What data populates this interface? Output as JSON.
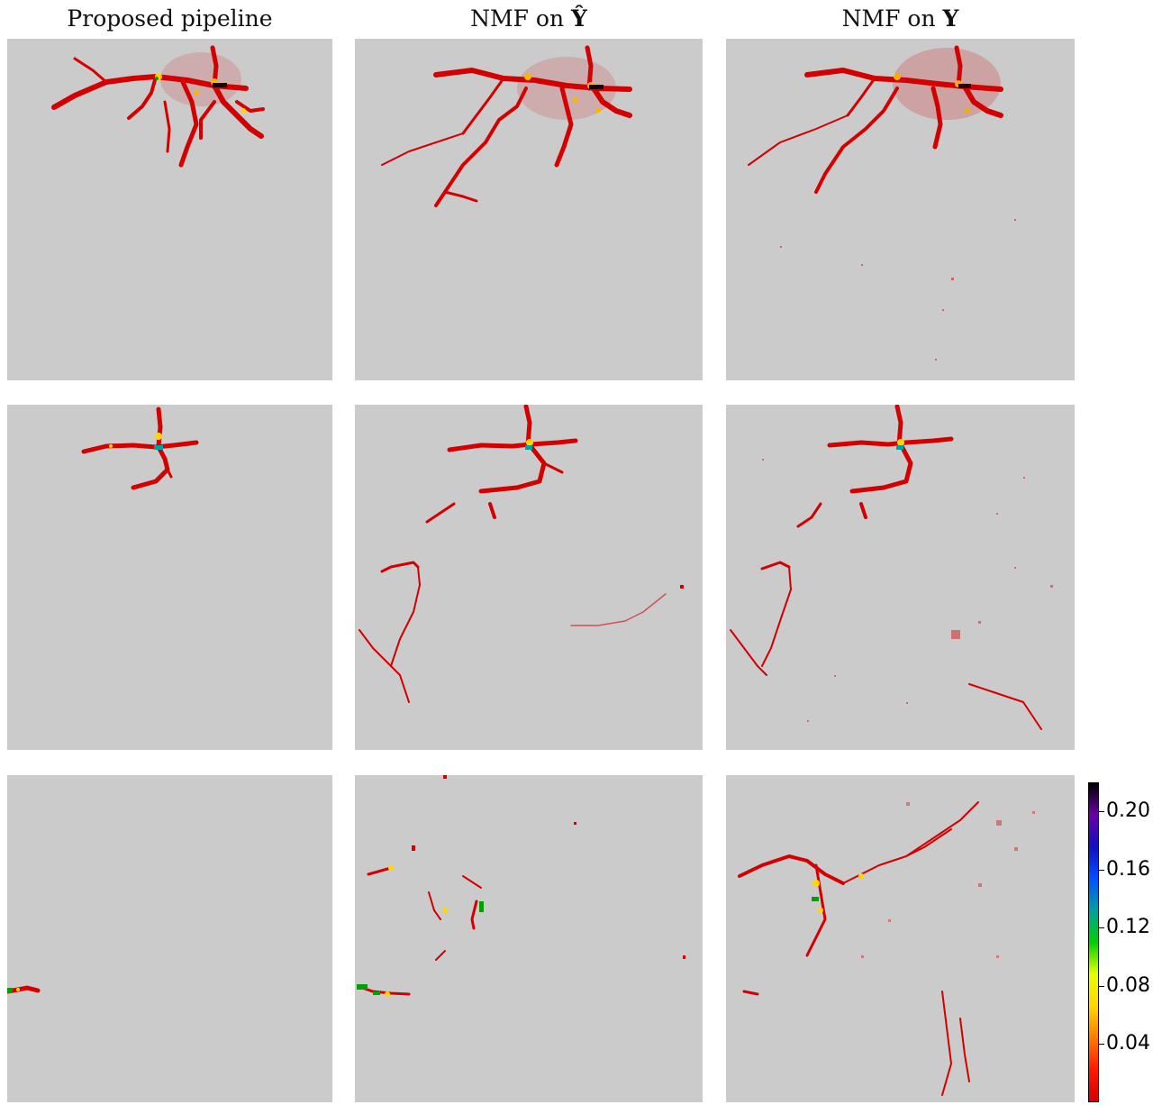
{
  "columns": [
    {
      "title_prefix": "Proposed pipeline",
      "title_symbol": ""
    },
    {
      "title_prefix": "NMF on ",
      "title_symbol": "Ŷ"
    },
    {
      "title_prefix": "NMF on ",
      "title_symbol": "Y"
    }
  ],
  "panel_background": "#cbcbcb",
  "colormap": [
    "#d40000",
    "#ff1a00",
    "#ff7a00",
    "#ffd700",
    "#e8ff00",
    "#00d000",
    "#00a0a0",
    "#0050ff",
    "#1010c0",
    "#6a00a8",
    "#000000"
  ],
  "colorbar": {
    "min": 0.0,
    "max": 0.22,
    "ticks": [
      {
        "value": 0.04,
        "label": "0.04"
      },
      {
        "value": 0.08,
        "label": "0.08"
      },
      {
        "value": 0.12,
        "label": "0.12"
      },
      {
        "value": 0.16,
        "label": "0.16"
      },
      {
        "value": 0.2,
        "label": "0.20"
      }
    ]
  }
}
